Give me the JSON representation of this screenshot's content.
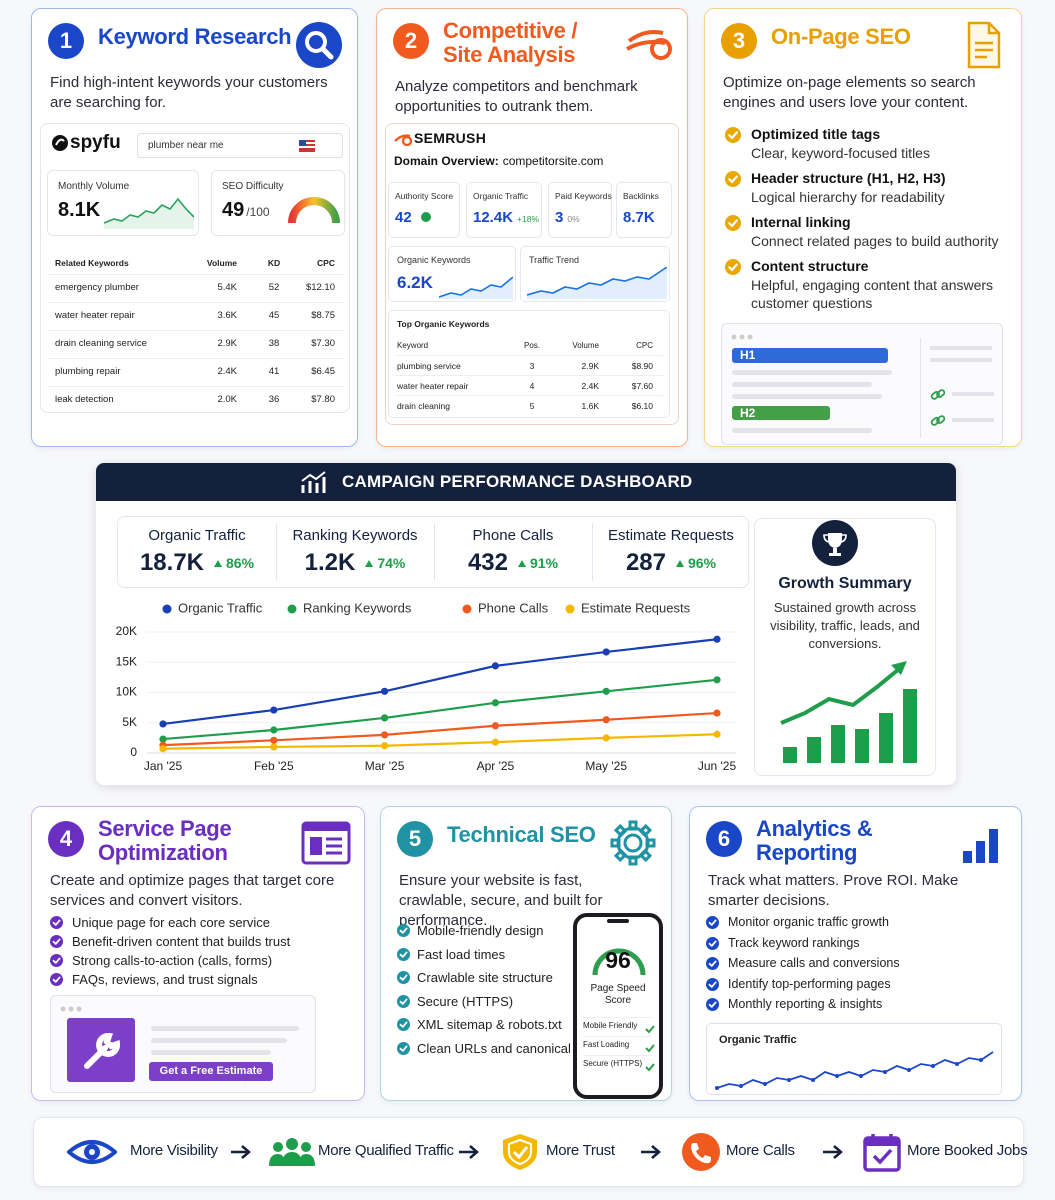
{
  "keyword_research": {
    "number": "1",
    "title": "Keyword Research",
    "description": "Find high-intent keywords your customers are searching for.",
    "brand": "spyfu",
    "search": "plumber near me",
    "volume_label": "Monthly Volume",
    "volume": "8.1K",
    "difficulty_label": "SEO Difficulty",
    "difficulty": "49",
    "difficulty_max": "/100",
    "table": {
      "headers": [
        "Related Keywords",
        "Volume",
        "KD",
        "CPC"
      ],
      "rows": [
        [
          "emergency plumber",
          "5.4K",
          "52",
          "$12.10"
        ],
        [
          "water heater repair",
          "3.6K",
          "45",
          "$8.75"
        ],
        [
          "drain cleaning service",
          "2.9K",
          "38",
          "$7.30"
        ],
        [
          "plumbing repair",
          "2.4K",
          "41",
          "$6.45"
        ],
        [
          "leak detection",
          "2.0K",
          "36",
          "$7.80"
        ]
      ]
    }
  },
  "competitive": {
    "number": "2",
    "title": "Competitive / Site Analysis",
    "description": "Analyze competitors and benchmark opportunities to outrank them.",
    "brand": "SEMRUSH",
    "domain_label": "Domain Overview:",
    "domain": "competitorsite.com",
    "metrics": [
      {
        "label": "Authority Score",
        "value": "42"
      },
      {
        "label": "Organic Traffic",
        "value": "12.4K",
        "change": "+18%"
      },
      {
        "label": "Paid Keywords",
        "value": "3",
        "change": "0%"
      },
      {
        "label": "Backlinks",
        "value": "8.7K"
      }
    ],
    "organic_keywords_label": "Organic Keywords",
    "organic_keywords": "6.2K",
    "trend_label": "Traffic Trend",
    "table": {
      "title": "Top Organic Keywords",
      "headers": [
        "Keyword",
        "Pos.",
        "Volume",
        "CPC"
      ],
      "rows": [
        [
          "plumbing service",
          "3",
          "2.9K",
          "$8.90"
        ],
        [
          "water heater repair",
          "4",
          "2.4K",
          "$7.60"
        ],
        [
          "drain cleaning",
          "5",
          "1.6K",
          "$6.10"
        ]
      ]
    }
  },
  "on_page": {
    "number": "3",
    "title": "On-Page SEO",
    "description": "Optimize on-page elements so search engines and users love your content.",
    "items": [
      {
        "title": "Optimized title tags",
        "text": "Clear, keyword-focused titles"
      },
      {
        "title": "Header structure (H1, H2, H3)",
        "text": "Logical hierarchy for readability"
      },
      {
        "title": "Internal linking",
        "text": "Connect related pages to build authority"
      },
      {
        "title": "Content structure",
        "text": "Helpful, engaging content that answers customer questions"
      }
    ],
    "mock_labels": [
      "H1",
      "H2"
    ]
  },
  "dashboard": {
    "title": "CAMPAIGN PERFORMANCE DASHBOARD",
    "kpis": [
      {
        "label": "Organic Traffic",
        "value": "18.7K",
        "change": "86%"
      },
      {
        "label": "Ranking Keywords",
        "value": "1.2K",
        "change": "74%"
      },
      {
        "label": "Phone Calls",
        "value": "432",
        "change": "91%"
      },
      {
        "label": "Estimate Requests",
        "value": "287",
        "change": "96%"
      }
    ],
    "summary_title": "Growth Summary",
    "summary_text": "Sustained growth across visibility, traffic, leads, and conversions."
  },
  "chart_data": {
    "type": "line",
    "categories": [
      "Jan '25",
      "Feb '25",
      "Mar '25",
      "Apr '25",
      "May '25",
      "Jun '25"
    ],
    "series": [
      {
        "name": "Organic Traffic",
        "color": "#1a3fb5",
        "values": [
          4800,
          7100,
          10200,
          14400,
          16700,
          18800
        ]
      },
      {
        "name": "Ranking Keywords",
        "color": "#1e9e4a",
        "values": [
          2300,
          3800,
          5800,
          8300,
          10200,
          12100
        ]
      },
      {
        "name": "Phone Calls",
        "color": "#f05a1e",
        "values": [
          1300,
          2100,
          3000,
          4500,
          5500,
          6600
        ]
      },
      {
        "name": "Estimate Requests",
        "color": "#f5b800",
        "values": [
          700,
          1000,
          1200,
          1800,
          2500,
          3100
        ]
      }
    ],
    "ylim": [
      0,
      20000
    ],
    "yticks": [
      0,
      {
        "value": 5000,
        "label": "5K"
      },
      {
        "value": 10000,
        "label": "10K"
      },
      {
        "value": 15000,
        "label": "15K"
      },
      {
        "value": 20000,
        "label": "20K"
      }
    ],
    "grid": true,
    "legend": "top"
  },
  "service_page": {
    "number": "4",
    "title": "Service Page Optimization",
    "description": "Create and optimize pages that target core services and convert visitors.",
    "items": [
      "Unique page for each core service",
      "Benefit-driven content that builds trust",
      "Strong calls-to-action (calls, forms)",
      "FAQs, reviews, and trust signals"
    ],
    "button": "Get a Free Estimate"
  },
  "technical": {
    "number": "5",
    "title": "Technical SEO",
    "description": "Ensure your website is fast, crawlable, secure, and built for performance.",
    "items": [
      "Mobile-friendly design",
      "Fast load times",
      "Crawlable site structure",
      "Secure (HTTPS)",
      "XML sitemap & robots.txt",
      "Clean URLs and canonical tags"
    ],
    "score": "96",
    "score_label": "Page Speed Score",
    "checks": [
      "Mobile Friendly",
      "Fast Loading",
      "Secure (HTTPS)"
    ]
  },
  "analytics": {
    "number": "6",
    "title": "Analytics & Reporting",
    "description": "Track what matters. Prove ROI. Make smarter decisions.",
    "items": [
      "Monitor organic traffic growth",
      "Track keyword rankings",
      "Measure calls and conversions",
      "Identify top-performing pages",
      "Monthly reporting & insights"
    ],
    "chart_label": "Organic Traffic"
  },
  "funnel": [
    "More Visibility",
    "More Qualified Traffic",
    "More Trust",
    "More Calls",
    "More Booked Jobs"
  ]
}
